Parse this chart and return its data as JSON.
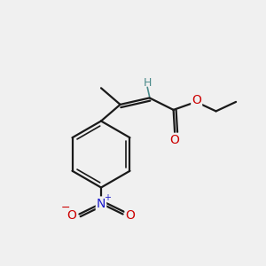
{
  "background_color": "#f0f0f0",
  "bond_color": "#1a1a1a",
  "atom_colors": {
    "O": "#cc0000",
    "N": "#1a1acc",
    "H": "#4a8a8a",
    "C": "#1a1a1a"
  },
  "figsize": [
    3.0,
    3.0
  ],
  "dpi": 100,
  "bond_lw": 1.6,
  "inner_lw": 1.2
}
